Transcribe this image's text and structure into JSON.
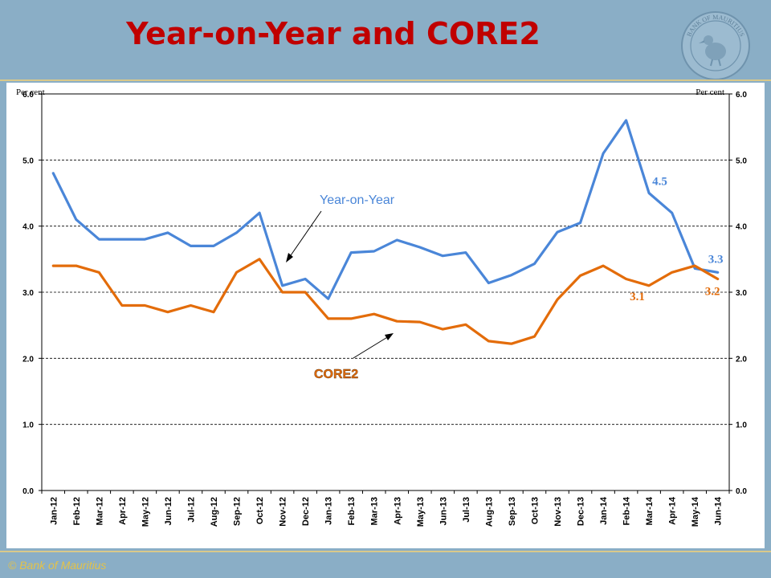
{
  "slide": {
    "title": "Year-on-Year and CORE2",
    "copyright": "© Bank of Mauritius",
    "seal_icon": "bank-of-mauritius-seal-icon",
    "seal_text": "BANK OF MAURITIUS"
  },
  "colors": {
    "background": "#8aaec6",
    "title": "#c00000",
    "yoy": "#4a86d8",
    "core2": "#e36c0a",
    "copyright": "#e3c24a"
  },
  "chart_data": {
    "type": "line",
    "left_unit_label": "Per cent",
    "right_unit_label": "Per cent",
    "ylim": [
      0,
      6
    ],
    "yticks": [
      "0.0",
      "1.0",
      "2.0",
      "3.0",
      "4.0",
      "5.0",
      "6.0"
    ],
    "grid": "horizontal dashed",
    "categories": [
      "Jan-12",
      "Feb-12",
      "Mar-12",
      "Apr-12",
      "May-12",
      "Jun-12",
      "Jul-12",
      "Aug-12",
      "Sep-12",
      "Oct-12",
      "Nov-12",
      "Dec-12",
      "Jan-13",
      "Feb-13",
      "Mar-13",
      "Apr-13",
      "May-13",
      "Jun-13",
      "Jul-13",
      "Aug-13",
      "Sep-13",
      "Oct-13",
      "Nov-13",
      "Dec-13",
      "Jan-14",
      "Feb-14",
      "Mar-14",
      "Apr-14",
      "May-14",
      "Jun-14"
    ],
    "series": [
      {
        "name": "Year-on-Year",
        "values": [
          4.8,
          4.1,
          3.8,
          3.8,
          3.8,
          3.9,
          3.7,
          3.7,
          3.9,
          4.2,
          3.1,
          3.2,
          2.9,
          3.6,
          3.62,
          3.79,
          3.68,
          3.55,
          3.6,
          3.14,
          3.26,
          3.43,
          3.91,
          4.05,
          5.1,
          5.6,
          4.5,
          4.2,
          3.36,
          3.3
        ]
      },
      {
        "name": "CORE2",
        "values": [
          3.4,
          3.4,
          3.3,
          2.8,
          2.8,
          2.7,
          2.8,
          2.7,
          3.3,
          3.5,
          3.0,
          3.0,
          2.6,
          2.6,
          2.67,
          2.56,
          2.55,
          2.44,
          2.51,
          2.26,
          2.22,
          2.33,
          2.89,
          3.25,
          3.4,
          3.2,
          3.1,
          3.3,
          3.4,
          3.2
        ]
      }
    ],
    "annotations": [
      {
        "text": "4.5",
        "series": "Year-on-Year",
        "index": 26
      },
      {
        "text": "3.3",
        "series": "Year-on-Year",
        "index": 29
      },
      {
        "text": "3.1",
        "series": "CORE2",
        "index": 26
      },
      {
        "text": "3.2",
        "series": "CORE2",
        "index": 29
      }
    ]
  }
}
